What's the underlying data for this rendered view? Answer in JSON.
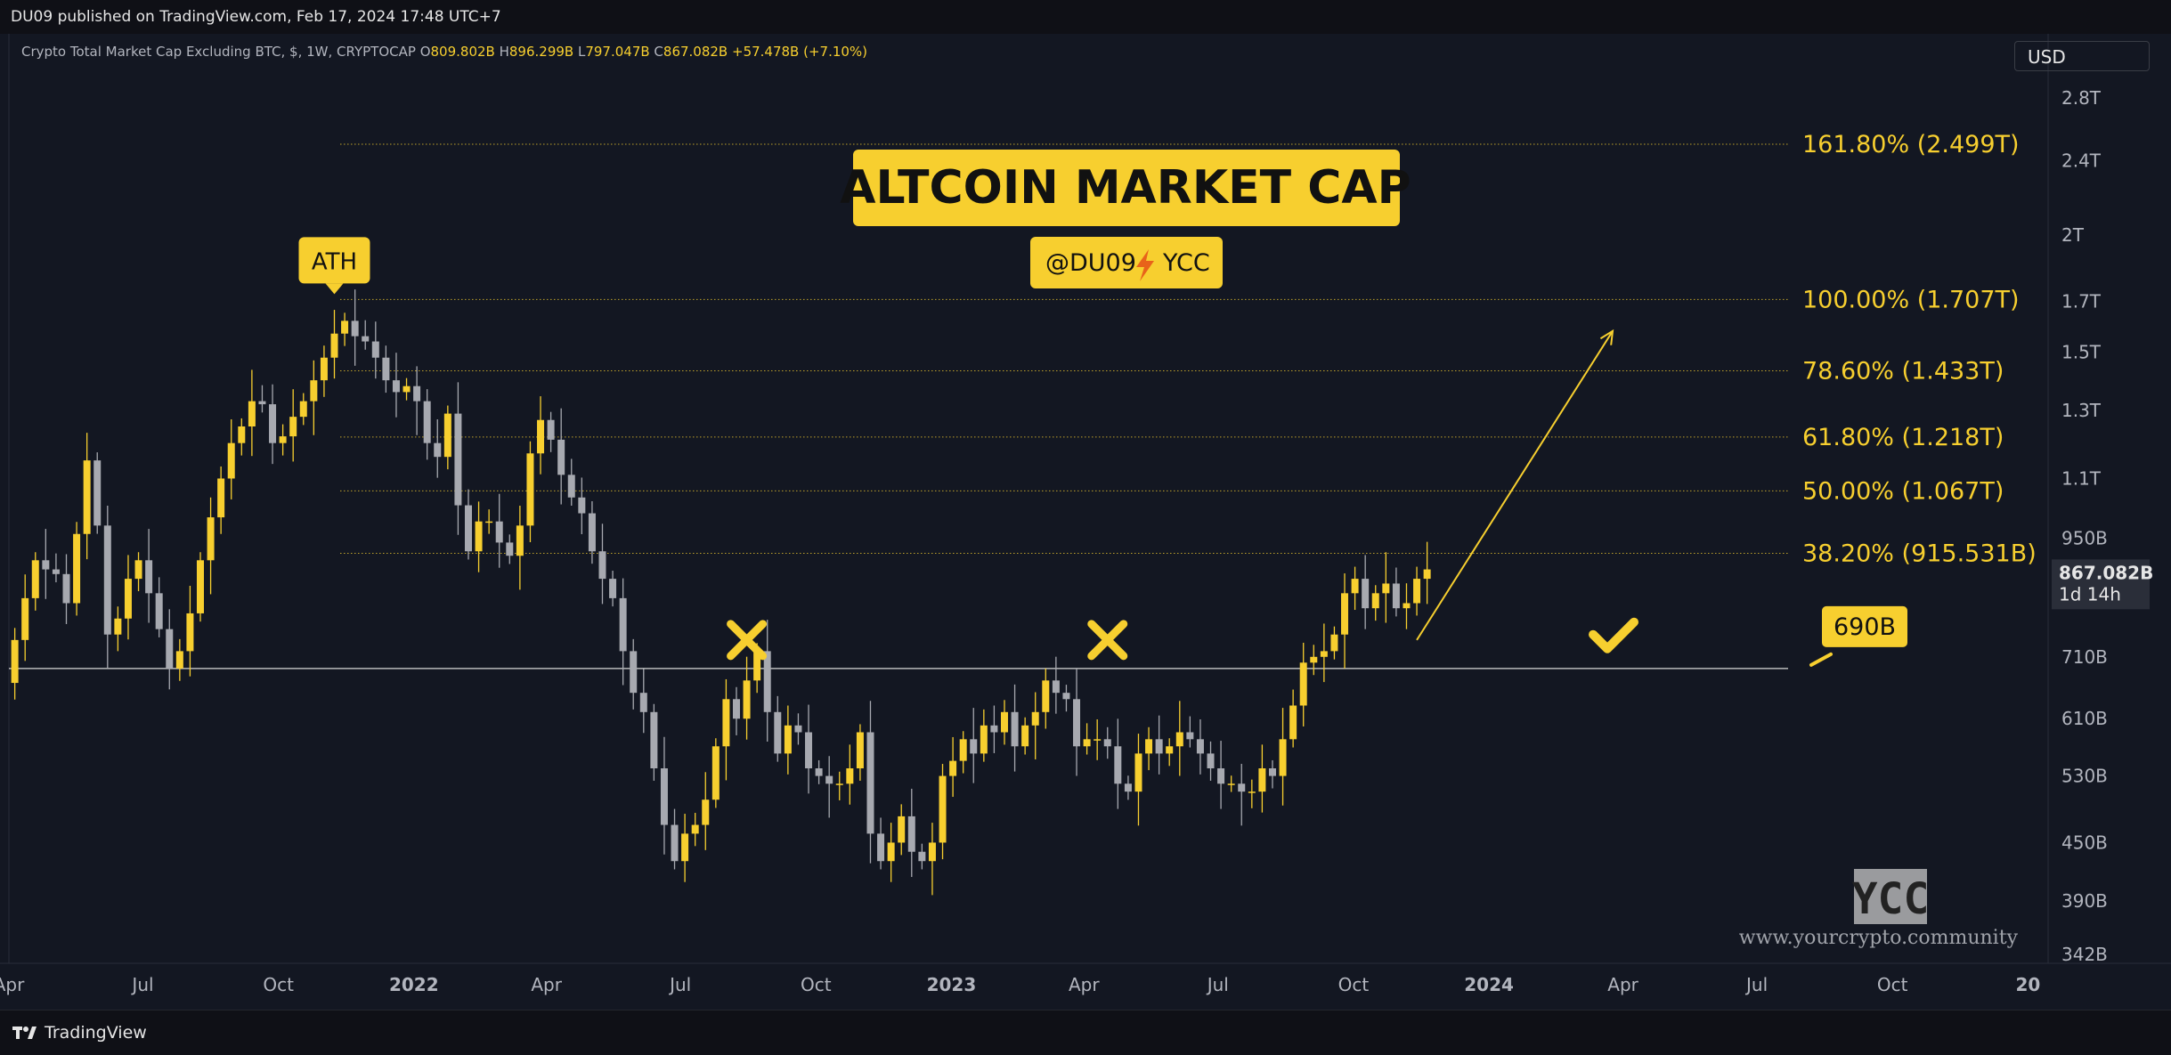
{
  "header": {
    "published": "DU09 published on TradingView.com, Feb 17, 2024 17:48 UTC+7"
  },
  "legend": {
    "symbol": "Crypto Total Market Cap Excluding BTC, $, 1W, CRYPTOCAP",
    "o_label": "O",
    "o": "809.802B",
    "h_label": "H",
    "h": "896.299B",
    "l_label": "L",
    "l": "797.047B",
    "c_label": "C",
    "c": "867.082B",
    "change": "+57.478B (+7.10%)"
  },
  "currency_button": "USD",
  "footer": {
    "brand": "TradingView"
  },
  "colors": {
    "background": "#131722",
    "up": "#f7cf2f",
    "down": "#a7a9b0",
    "accent": "#f7cf2f",
    "text": "#b2b5be"
  },
  "chart_data": {
    "type": "candlestick",
    "title": "ALTCOIN MARKET CAP",
    "subtitle_left": "@DU09",
    "subtitle_icon": "lightning-icon",
    "subtitle_right": "YCC",
    "y_scale": "log",
    "ylim": [
      330,
      3000
    ],
    "y_ticks": [
      {
        "label": "2.8T",
        "value": 2800
      },
      {
        "label": "2.4T",
        "value": 2400
      },
      {
        "label": "2T",
        "value": 2000
      },
      {
        "label": "1.7T",
        "value": 1700
      },
      {
        "label": "1.5T",
        "value": 1500
      },
      {
        "label": "1.3T",
        "value": 1300
      },
      {
        "label": "1.1T",
        "value": 1100
      },
      {
        "label": "950B",
        "value": 950
      },
      {
        "label": "710B",
        "value": 710
      },
      {
        "label": "610B",
        "value": 610
      },
      {
        "label": "530B",
        "value": 530
      },
      {
        "label": "450B",
        "value": 450
      },
      {
        "label": "390B",
        "value": 390
      },
      {
        "label": "342B",
        "value": 342
      }
    ],
    "x_ticks": [
      {
        "label": "Apr",
        "date": "2021-04-01",
        "bold": false
      },
      {
        "label": "Jul",
        "date": "2021-07-01",
        "bold": false
      },
      {
        "label": "Oct",
        "date": "2021-10-01",
        "bold": false
      },
      {
        "label": "2022",
        "date": "2022-01-01",
        "bold": true
      },
      {
        "label": "Apr",
        "date": "2022-04-01",
        "bold": false
      },
      {
        "label": "Jul",
        "date": "2022-07-01",
        "bold": false
      },
      {
        "label": "Oct",
        "date": "2022-10-01",
        "bold": false
      },
      {
        "label": "2023",
        "date": "2023-01-01",
        "bold": true
      },
      {
        "label": "Apr",
        "date": "2023-04-01",
        "bold": false
      },
      {
        "label": "Jul",
        "date": "2023-07-01",
        "bold": false
      },
      {
        "label": "Oct",
        "date": "2023-10-01",
        "bold": false
      },
      {
        "label": "2024",
        "date": "2024-01-01",
        "bold": true
      },
      {
        "label": "Apr",
        "date": "2024-04-01",
        "bold": false
      },
      {
        "label": "Jul",
        "date": "2024-07-01",
        "bold": false
      },
      {
        "label": "Oct",
        "date": "2024-10-01",
        "bold": false
      },
      {
        "label": "20",
        "date": "2025-01-01",
        "bold": true
      }
    ],
    "x_range": [
      "2021-04-01",
      "2025-01-05"
    ],
    "candle_start": "2021-04-05",
    "candle_interval_days": 7,
    "closes": [
      740,
      820,
      900,
      880,
      870,
      810,
      960,
      1150,
      980,
      750,
      780,
      860,
      900,
      830,
      760,
      690,
      720,
      790,
      900,
      1000,
      1100,
      1200,
      1250,
      1330,
      1320,
      1200,
      1220,
      1280,
      1330,
      1400,
      1480,
      1570,
      1620,
      1560,
      1540,
      1480,
      1400,
      1360,
      1380,
      1330,
      1200,
      1160,
      1290,
      1030,
      920,
      990,
      990,
      940,
      910,
      980,
      1170,
      1270,
      1210,
      1110,
      1050,
      1010,
      920,
      860,
      820,
      720,
      650,
      620,
      540,
      470,
      430,
      460,
      470,
      500,
      570,
      640,
      610,
      670,
      720,
      620,
      560,
      600,
      590,
      540,
      530,
      520,
      520,
      540,
      590,
      460,
      430,
      450,
      480,
      440,
      430,
      450,
      530,
      550,
      580,
      560,
      600,
      590,
      620,
      570,
      600,
      620,
      670,
      650,
      640,
      570,
      580,
      580,
      570,
      520,
      510,
      560,
      580,
      560,
      570,
      590,
      580,
      560,
      540,
      520,
      520,
      510,
      510,
      540,
      530,
      580,
      630,
      700,
      710,
      720,
      750,
      830,
      860,
      800,
      830,
      850,
      800,
      810,
      860,
      880
    ],
    "current_price": {
      "label": "867.082B",
      "value": 867.082,
      "countdown": "1d 14h"
    },
    "support": {
      "label": "690B",
      "value": 690
    },
    "fib_levels": [
      {
        "label": "161.80% (2.499T)",
        "value": 2499
      },
      {
        "label": "100.00% (1.707T)",
        "value": 1707
      },
      {
        "label": "78.60% (1.433T)",
        "value": 1433
      },
      {
        "label": "61.80% (1.218T)",
        "value": 1218
      },
      {
        "label": "50.00% (1.067T)",
        "value": 1067
      },
      {
        "label": "38.20% (915.531B)",
        "value": 915.531
      }
    ],
    "annotations": [
      {
        "type": "callout",
        "text": "ATH",
        "date": "2021-11-08",
        "value": 1707
      },
      {
        "type": "x-mark",
        "date": "2022-08-15",
        "value": 740
      },
      {
        "type": "x-mark",
        "date": "2023-04-17",
        "value": 740
      },
      {
        "type": "check-mark",
        "date": "2024-03-25",
        "value": 750
      },
      {
        "type": "arrow",
        "from_date": "2023-11-13",
        "from_value": 740,
        "to_date": "2024-03-25",
        "to_value": 1580
      }
    ],
    "watermark": {
      "logo": "YCC",
      "url": "www.yourcrypto.community"
    }
  }
}
